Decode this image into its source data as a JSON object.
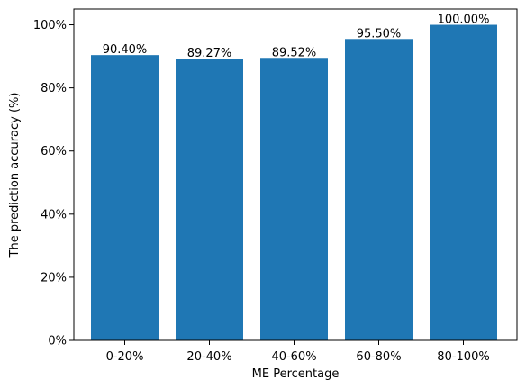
{
  "chart_data": {
    "type": "bar",
    "title": "",
    "xlabel": "ME Percentage",
    "ylabel": "The prediction accuracy (%)",
    "categories": [
      "0-20%",
      "20-40%",
      "40-60%",
      "60-80%",
      "80-100%"
    ],
    "values": [
      90.4,
      89.27,
      89.52,
      95.5,
      100.0
    ],
    "data_labels": [
      "90.40%",
      "89.27%",
      "89.52%",
      "95.50%",
      "100.00%"
    ],
    "ylim": [
      0,
      105
    ],
    "yticks": [
      0,
      20,
      40,
      60,
      80,
      100
    ],
    "ytick_labels": [
      "0%",
      "20%",
      "40%",
      "60%",
      "80%",
      "100%"
    ],
    "bar_color": "#1f77b4",
    "grid": false,
    "legend": "none"
  }
}
